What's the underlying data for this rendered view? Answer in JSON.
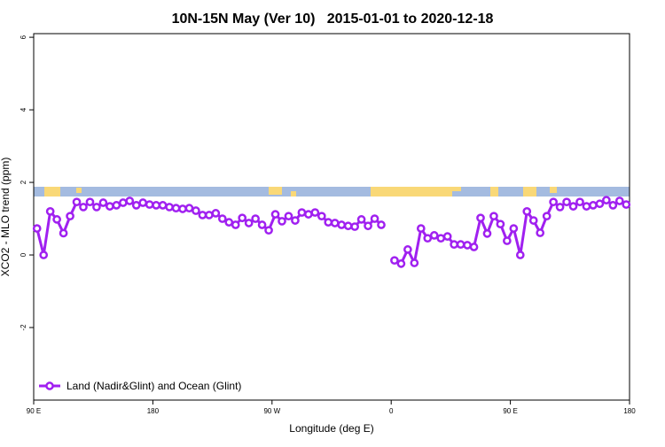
{
  "chart_data": {
    "type": "line",
    "title": "10N-15N May (Ver 10)   2015-01-01 to 2020-12-18",
    "x_label": "Longitude (deg E)",
    "y_label": "XCO2 - MLO trend (ppm)",
    "x": [
      92.5,
      97.5,
      102.5,
      107.5,
      112.5,
      117.5,
      122.5,
      127.5,
      132.5,
      137.5,
      142.5,
      147.5,
      152.5,
      157.5,
      162.5,
      167.5,
      172.5,
      177.5,
      182.5,
      187.5,
      192.5,
      197.5,
      202.5,
      207.5,
      212.5,
      217.5,
      222.5,
      227.5,
      232.5,
      237.5,
      242.5,
      247.5,
      252.5,
      257.5,
      262.5,
      267.5,
      272.5,
      277.5,
      282.5,
      287.5,
      292.5,
      297.5,
      302.5,
      307.5,
      312.5,
      317.5,
      322.5,
      327.5,
      332.5,
      337.5,
      342.5,
      347.5,
      352.5,
      357.5,
      362.5,
      367.5,
      372.5,
      377.5,
      382.5,
      387.5,
      392.5,
      397.5,
      402.5,
      407.5,
      412.5,
      417.5,
      422.5,
      427.5,
      432.5,
      437.5,
      442.5,
      447.5,
      452.5,
      457.5,
      462.5,
      467.5,
      472.5,
      477.5,
      482.5,
      487.5,
      492.5,
      497.5,
      502.5,
      507.5,
      512.5,
      517.5,
      522.5,
      527.5,
      532.5,
      537.5
    ],
    "series": [
      {
        "name": "Land (Nadir&Glint) and Ocean (Glint)",
        "color": "#a020f0",
        "values": [
          0.73,
          0.0,
          1.2,
          0.98,
          0.6,
          1.07,
          1.46,
          1.32,
          1.46,
          1.32,
          1.44,
          1.34,
          1.37,
          1.44,
          1.49,
          1.37,
          1.44,
          1.39,
          1.37,
          1.37,
          1.32,
          1.29,
          1.27,
          1.29,
          1.22,
          1.1,
          1.1,
          1.15,
          1.0,
          0.9,
          0.83,
          1.02,
          0.88,
          1.0,
          0.83,
          0.68,
          1.12,
          0.93,
          1.07,
          0.95,
          1.17,
          1.12,
          1.17,
          1.07,
          0.9,
          0.88,
          0.83,
          0.8,
          0.78,
          0.98,
          0.8,
          1.0,
          0.83,
          null,
          -0.15,
          -0.24,
          0.15,
          -0.22,
          0.73,
          0.46,
          0.54,
          0.46,
          0.51,
          0.29,
          0.29,
          0.27,
          0.22,
          1.02,
          0.59,
          1.07,
          0.85,
          0.39,
          0.73,
          0.0,
          1.2,
          0.95,
          0.61,
          1.07,
          1.46,
          1.32,
          1.46,
          1.34,
          1.46,
          1.34,
          1.37,
          1.41,
          1.51,
          1.37,
          1.49,
          1.39
        ]
      }
    ],
    "xlim": [
      90,
      540
    ],
    "xticks": [
      {
        "value": 90,
        "label": "90 E"
      },
      180,
      {
        "value": 270,
        "label": "90 W"
      },
      {
        "value": 360,
        "label": "0"
      },
      {
        "value": 450,
        "label": "90 E"
      },
      {
        "value": 540,
        "label": "180"
      }
    ],
    "ylim": [
      -4,
      6.1
    ],
    "yticks": [
      -2,
      0,
      2,
      4,
      6
    ],
    "legend": "bottom-left"
  }
}
